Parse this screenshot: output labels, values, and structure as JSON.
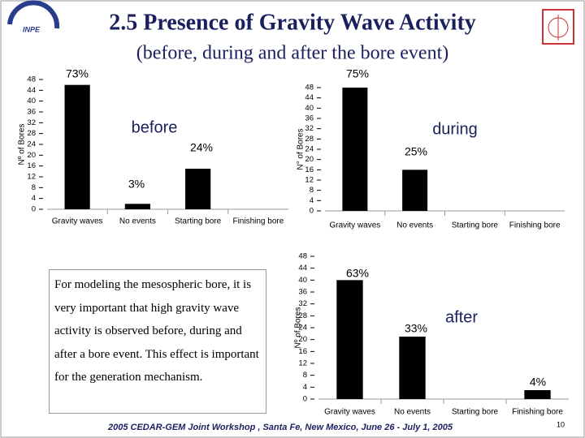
{
  "slide": {
    "title": "2.5 Presence of Gravity Wave Activity",
    "subtitle": "(before, during and after the bore event)",
    "text": "For modeling the mesospheric bore, it is very important that high gravity wave activity is observed before, during and after a bore event. This effect is important for the generation mechanism.",
    "footer": "2005 CEDAR-GEM Joint Workshop , Santa Fe, New Mexico, June 26 - July 1, 2005",
    "page": "10"
  },
  "chart_data": [
    {
      "type": "bar",
      "ylabel": "Nº of Bores",
      "color": "#000000",
      "categories": [
        "Gravity waves",
        "No events",
        "Starting bore",
        "Finishing bore"
      ],
      "values": [
        46,
        2,
        15,
        0
      ],
      "ylim": [
        0,
        48
      ],
      "yticks": [
        0,
        4,
        8,
        12,
        16,
        20,
        24,
        28,
        32,
        36,
        40,
        44,
        48
      ],
      "annotations": [
        "73%",
        "3%",
        "24%",
        "before"
      ]
    },
    {
      "type": "bar",
      "ylabel": "N° of Bores",
      "color": "#000000",
      "categories": [
        "Gravity waves",
        "No events",
        "Starting bore",
        "Finishing bore"
      ],
      "values": [
        48,
        16,
        0,
        0
      ],
      "ylim": [
        0,
        48
      ],
      "yticks": [
        0,
        4,
        8,
        12,
        16,
        20,
        24,
        28,
        32,
        36,
        40,
        44,
        48
      ],
      "annotations": [
        "75%",
        "25%",
        "during"
      ]
    },
    {
      "type": "bar",
      "ylabel": "Nº of Bores",
      "color": "#000000",
      "categories": [
        "Gravity waves",
        "No events",
        "Starting bore",
        "Finishing bore"
      ],
      "values": [
        40,
        21,
        0,
        3
      ],
      "ylim": [
        0,
        48
      ],
      "yticks": [
        0,
        4,
        8,
        12,
        16,
        20,
        24,
        28,
        32,
        36,
        40,
        44,
        48
      ],
      "annotations": [
        "63%",
        "33%",
        "4%",
        "after"
      ]
    }
  ]
}
